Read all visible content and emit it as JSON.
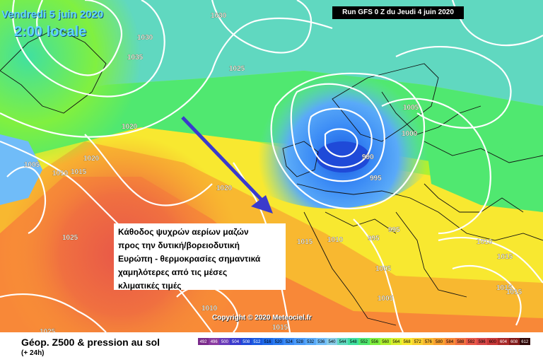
{
  "header": {
    "date": "Vendredi 5 juin 2020",
    "time": "2:00 locale",
    "run": "Run GFS 0 Z du Jeudi 4 juin 2020"
  },
  "annotation": "Κάθοδος ψυχρών αερίων μαζών\nπρος την δυτική/βορειοδυτική\nΕυρώπη - θερμοκρασίες σημαντικά\nχαμηλότερες από τις μέσες\nκλιματικές τιμές",
  "copyright": "Copyright © 2020 Meteociel.fr",
  "footer": {
    "title": "Géop. Z500 & pression au sol",
    "subtitle": "(+ 24h)"
  },
  "legend": {
    "labels": [
      "492",
      "496",
      "500",
      "504",
      "508",
      "512",
      "516",
      "520",
      "524",
      "528",
      "532",
      "536",
      "540",
      "544",
      "548",
      "552",
      "556",
      "560",
      "564",
      "568",
      "572",
      "576",
      "580",
      "584",
      "588",
      "592",
      "596",
      "600",
      "604",
      "608",
      "612"
    ],
    "colors": [
      "#7a2a8a",
      "#8a3aa0",
      "#6a3ab8",
      "#3a3acc",
      "#1f4ad8",
      "#1a5ae0",
      "#1f6ae8",
      "#2a7af0",
      "#3a8af5",
      "#4a9af8",
      "#5aaaf8",
      "#70bcf8",
      "#88cce8",
      "#60d8c0",
      "#40e0a0",
      "#50e870",
      "#80f040",
      "#b0f030",
      "#d8f030",
      "#f8e830",
      "#f8d030",
      "#f8b830",
      "#f8a030",
      "#f88838",
      "#f07040",
      "#e85848",
      "#d84848",
      "#c83838",
      "#a82828",
      "#801818",
      "#300808"
    ]
  },
  "map": {
    "pressure_labels": [
      {
        "text": "1030"
      },
      {
        "text": "1030"
      },
      {
        "text": "1035"
      },
      {
        "text": "1025"
      },
      {
        "text": "1020"
      },
      {
        "text": "1020"
      },
      {
        "text": "1005"
      },
      {
        "text": "1010"
      },
      {
        "text": "1015"
      },
      {
        "text": "1020"
      },
      {
        "text": "1025"
      },
      {
        "text": "1005"
      },
      {
        "text": "1000"
      },
      {
        "text": "990"
      },
      {
        "text": "995"
      },
      {
        "text": "995"
      },
      {
        "text": "995"
      },
      {
        "text": "1010"
      },
      {
        "text": "1015"
      },
      {
        "text": "1005"
      },
      {
        "text": "1010"
      },
      {
        "text": "1015"
      },
      {
        "text": "1015"
      },
      {
        "text": "1015"
      },
      {
        "text": "1010"
      },
      {
        "text": "1005"
      },
      {
        "text": "1025"
      },
      {
        "text": "1015"
      }
    ]
  }
}
